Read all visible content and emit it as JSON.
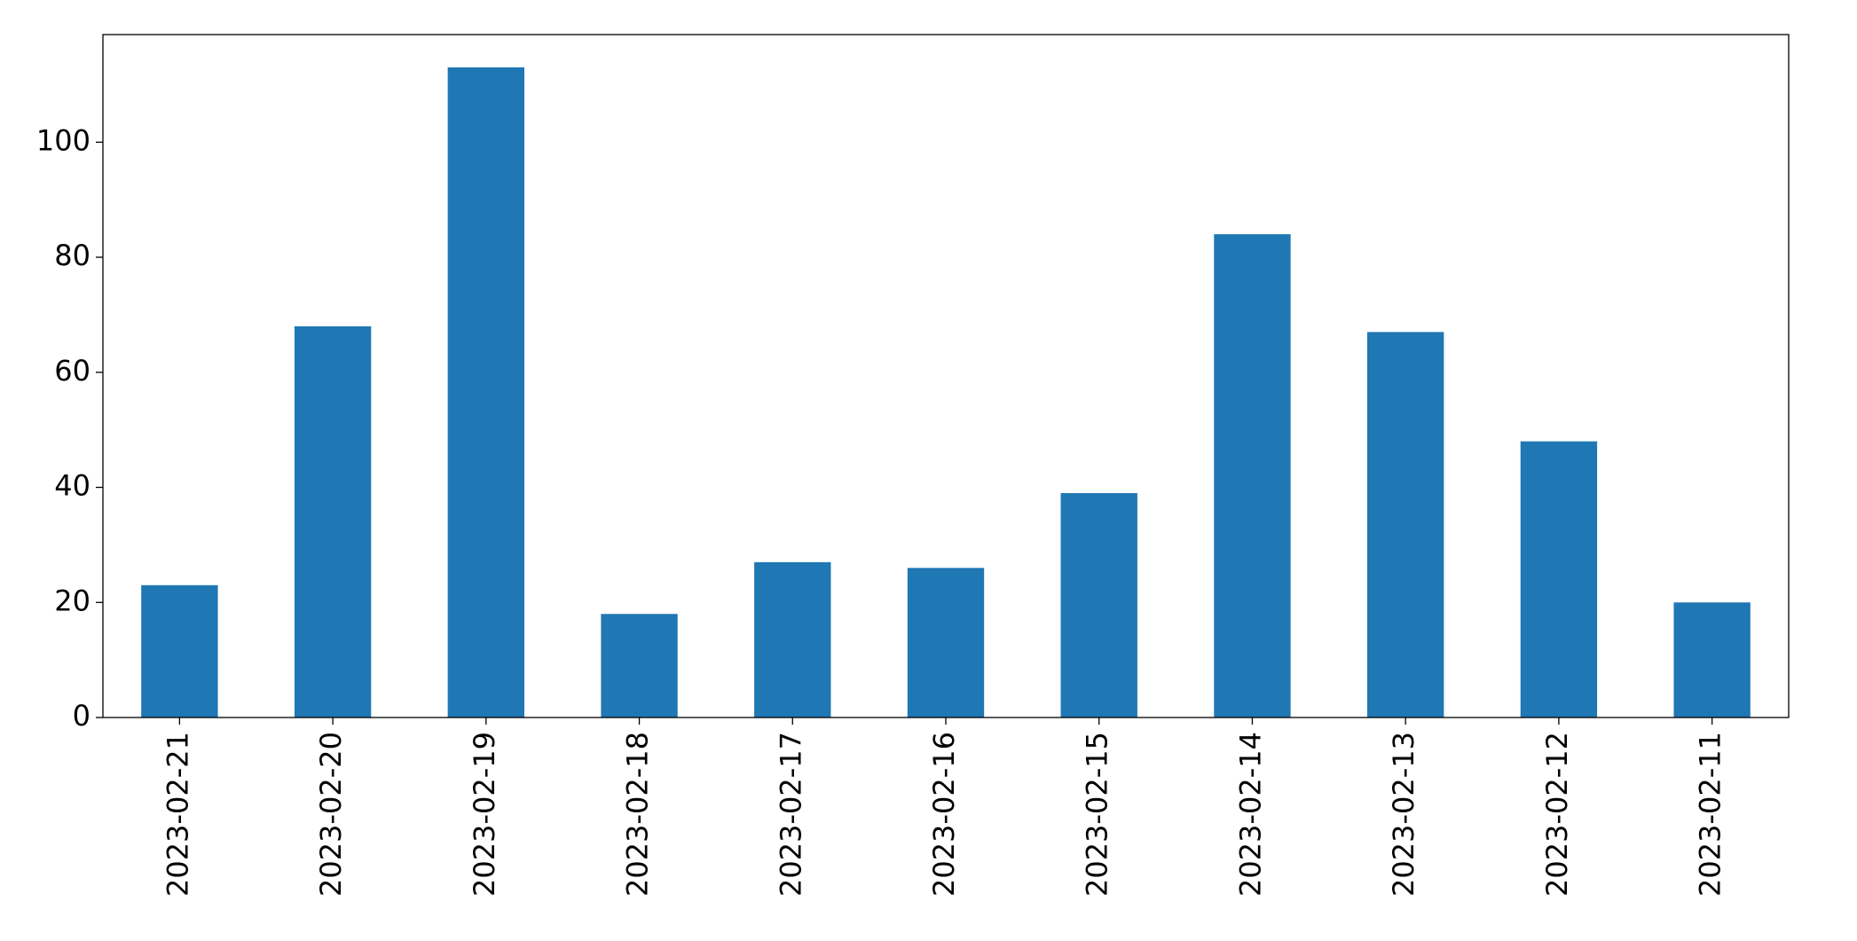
{
  "chart_data": {
    "type": "bar",
    "categories": [
      "2023-02-21",
      "2023-02-20",
      "2023-02-19",
      "2023-02-18",
      "2023-02-17",
      "2023-02-16",
      "2023-02-15",
      "2023-02-14",
      "2023-02-13",
      "2023-02-12",
      "2023-02-11"
    ],
    "values": [
      23,
      68,
      113,
      18,
      27,
      26,
      39,
      84,
      67,
      48,
      20
    ],
    "color": "#1f77b4",
    "ylim": [
      0,
      118.7
    ],
    "yticks": [
      0,
      20,
      40,
      60,
      80,
      100
    ],
    "grid": false
  }
}
